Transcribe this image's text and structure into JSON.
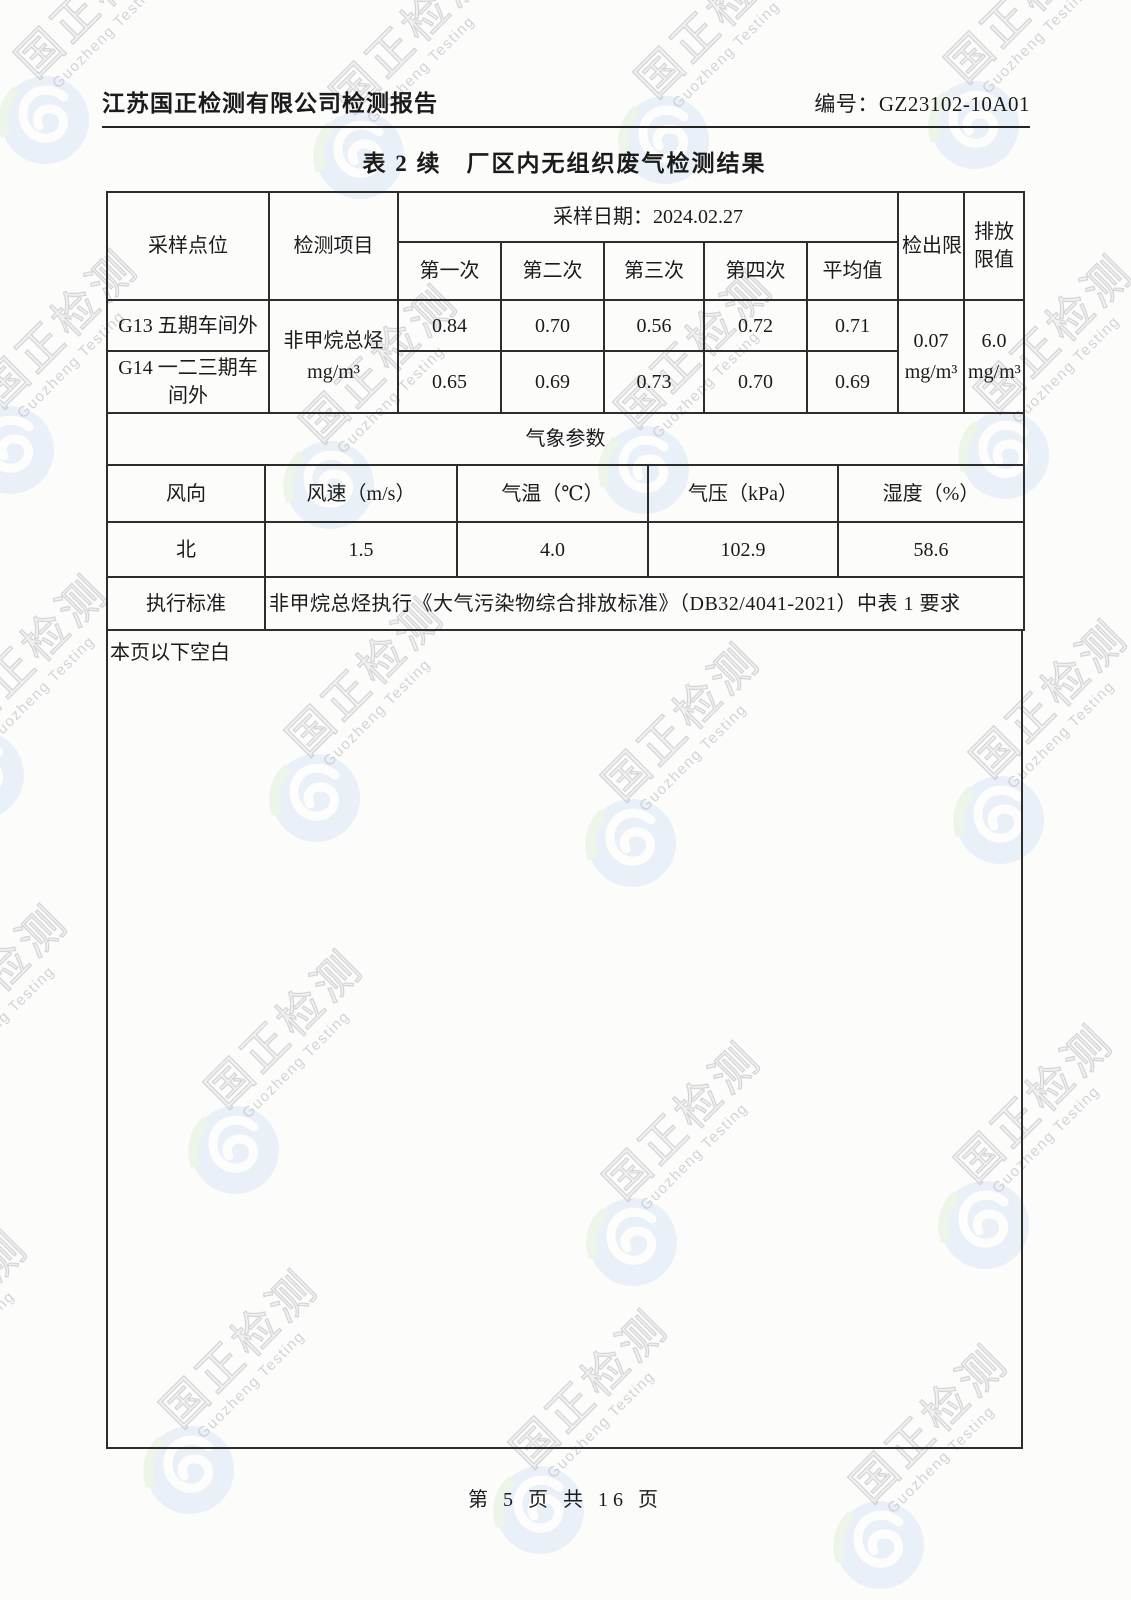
{
  "page": {
    "header_left": "江苏国正检测有限公司检测报告",
    "header_right": "编号：GZ23102-10A01",
    "title": "表 2 续　厂区内无组织废气检测结果",
    "blank_note": "本页以下空白",
    "footer": "第 5 页 共 16 页"
  },
  "watermark": {
    "cn": "国正检测",
    "en": "Guozheng Testing",
    "logo_blue": "#b6cde9",
    "logo_green": "#bedcae",
    "text_gray": "#9a9aa2"
  },
  "table": {
    "headers": {
      "point": "采样点位",
      "item": "检测项目",
      "date": "采样日期：2024.02.27",
      "runs": [
        "第一次",
        "第二次",
        "第三次",
        "第四次",
        "平均值"
      ],
      "detection_limit": "检出限",
      "emission_limit": "排放限值"
    },
    "item": {
      "name": "非甲烷总烃",
      "unit": "mg/m³"
    },
    "rows": [
      {
        "point": "G13 五期车间外",
        "values": [
          "0.84",
          "0.70",
          "0.56",
          "0.72",
          "0.71"
        ]
      },
      {
        "point": "G14 一二三期车间外",
        "values": [
          "0.65",
          "0.69",
          "0.73",
          "0.70",
          "0.69"
        ]
      }
    ],
    "detection_limit": {
      "value": "0.07",
      "unit": "mg/m³"
    },
    "emission_limit": {
      "value": "6.0",
      "unit": "mg/m³"
    },
    "met_title": "气象参数",
    "met_headers": [
      "风向",
      "风速（m/s）",
      "气温（℃）",
      "气压（kPa）",
      "湿度（%）"
    ],
    "met_values": [
      "北",
      "1.5",
      "4.0",
      "102.9",
      "58.6"
    ],
    "standard_label": "执行标准",
    "standard_text": "非甲烷总烃执行《大气污染物综合排放标准》（DB32/4041-2021）中表 1 要求"
  }
}
